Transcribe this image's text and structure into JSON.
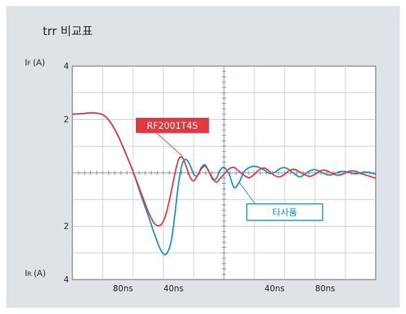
{
  "chart_data": {
    "type": "line",
    "title": "trr 비교표",
    "y_top_label": "IF (A)",
    "y_top_label_main": "I",
    "y_top_label_sub": "F",
    "y_top_label_unit": "(A)",
    "y_bottom_label_main": "I",
    "y_bottom_label_sub": "R",
    "y_bottom_label_unit": "(A)",
    "y_ticks": [
      {
        "label": "4",
        "value": 4
      },
      {
        "label": "2",
        "value": 2
      },
      {
        "label": "2",
        "value": -2
      },
      {
        "label": "4",
        "value": -4
      }
    ],
    "x_ticks": [
      {
        "label": "80ns",
        "value": -80
      },
      {
        "label": "40ns",
        "value": -40
      },
      {
        "label": "40ns",
        "value": 40
      },
      {
        "label": "80ns",
        "value": 80
      }
    ],
    "xlim": [
      -120,
      120
    ],
    "ylim": [
      -4,
      4
    ],
    "grid": true,
    "series": [
      {
        "name": "RF2001T4S",
        "color": "#e0393e",
        "x": [
          -120,
          -112,
          -104,
          -96,
          -90,
          -84,
          -78,
          -72,
          -66,
          -60,
          -55,
          -50,
          -46,
          -42,
          -39,
          -36,
          -33,
          -30,
          -27,
          -24,
          -21,
          -18,
          -15,
          -12,
          -9,
          -6,
          -3,
          0,
          4,
          8,
          12,
          16,
          20,
          24,
          28,
          32,
          36,
          40,
          44,
          48,
          52,
          56,
          60,
          64,
          68,
          72,
          76,
          80,
          84,
          88,
          92,
          96,
          100,
          104,
          108,
          112,
          116,
          120
        ],
        "y": [
          2.2,
          2.22,
          2.25,
          2.18,
          1.9,
          1.4,
          0.75,
          0.05,
          -0.7,
          -1.45,
          -1.9,
          -1.95,
          -1.55,
          -0.75,
          -0.05,
          0.5,
          0.58,
          0.25,
          -0.15,
          -0.3,
          -0.1,
          0.15,
          0.25,
          0.05,
          -0.2,
          -0.35,
          -0.2,
          -0.05,
          0.15,
          0.2,
          0.05,
          -0.1,
          -0.18,
          -0.05,
          0.12,
          0.18,
          0.05,
          -0.1,
          -0.15,
          -0.05,
          0.1,
          0.13,
          0.03,
          -0.07,
          -0.13,
          -0.05,
          0.07,
          0.1,
          0.02,
          -0.07,
          -0.08,
          0.0,
          0.07,
          0.06,
          -0.02,
          -0.08,
          -0.14,
          -0.2
        ]
      },
      {
        "name": "타사품",
        "color": "#1a8fc9",
        "x": [
          -120,
          -112,
          -104,
          -96,
          -90,
          -84,
          -78,
          -72,
          -66,
          -60,
          -55,
          -50,
          -46,
          -42,
          -39,
          -36,
          -33,
          -30,
          -27,
          -24,
          -21,
          -18,
          -15,
          -12,
          -9,
          -6,
          -3,
          0,
          4,
          8,
          12,
          16,
          20,
          24,
          28,
          32,
          36,
          40,
          44,
          48,
          52,
          56,
          60,
          64,
          68,
          72,
          76,
          80,
          84,
          88,
          92,
          96,
          100,
          104,
          108,
          112,
          116,
          120
        ],
        "y": [
          2.2,
          2.22,
          2.25,
          2.18,
          1.9,
          1.4,
          0.75,
          0.05,
          -0.8,
          -1.6,
          -2.3,
          -2.9,
          -3.05,
          -2.6,
          -1.6,
          -0.4,
          0.35,
          0.5,
          0.3,
          -0.05,
          -0.1,
          0.2,
          0.3,
          0.05,
          -0.25,
          -0.2,
          0.1,
          0.2,
          -0.05,
          -0.55,
          -0.35,
          0.05,
          0.2,
          0.25,
          0.2,
          0.1,
          -0.02,
          0.02,
          0.15,
          0.2,
          0.1,
          -0.05,
          -0.15,
          -0.05,
          0.08,
          0.12,
          0.05,
          -0.05,
          -0.08,
          -0.02,
          0.05,
          0.05,
          0.0,
          -0.03,
          0.0,
          0.03,
          0.0,
          -0.05
        ]
      }
    ],
    "annotations": [
      {
        "text": "RF2001T4S",
        "series": "RF2001T4S",
        "bg": "#e0393e",
        "text_color": "#ffffff"
      },
      {
        "text": "타사품",
        "series": "타사품",
        "bg": "#ffffff",
        "text_color": "#1a8fc9"
      }
    ]
  }
}
